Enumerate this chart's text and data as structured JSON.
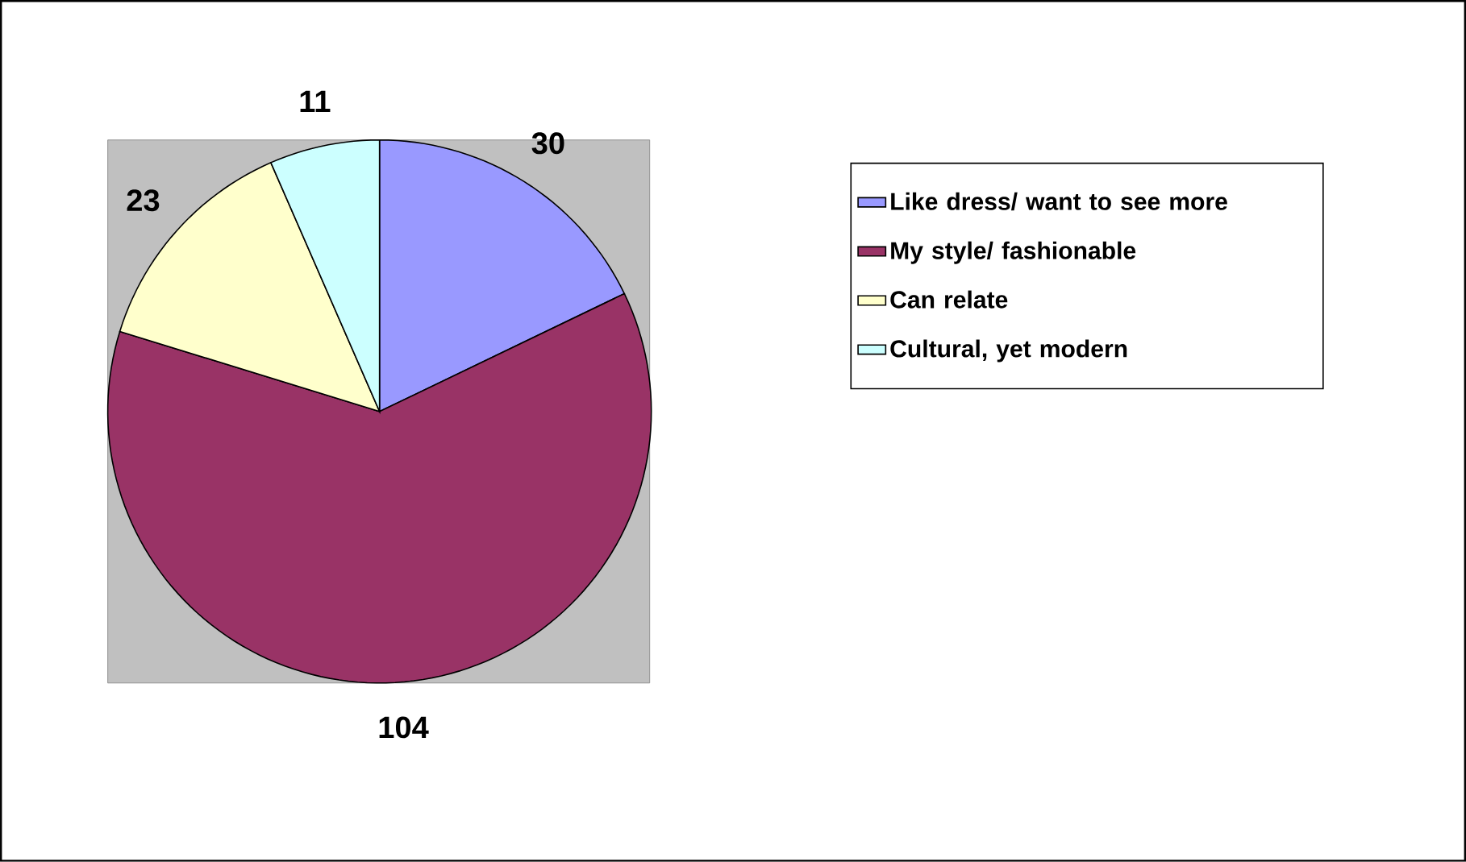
{
  "chart_data": {
    "type": "pie",
    "categories": [
      "Like dress/ want to see more",
      "My style/ fashionable",
      "Can relate",
      "Cultural, yet modern"
    ],
    "values": [
      30,
      104,
      23,
      11
    ],
    "colors": [
      "#9999ff",
      "#993366",
      "#ffffcc",
      "#ccffff"
    ],
    "data_labels": true,
    "legend": "right"
  }
}
